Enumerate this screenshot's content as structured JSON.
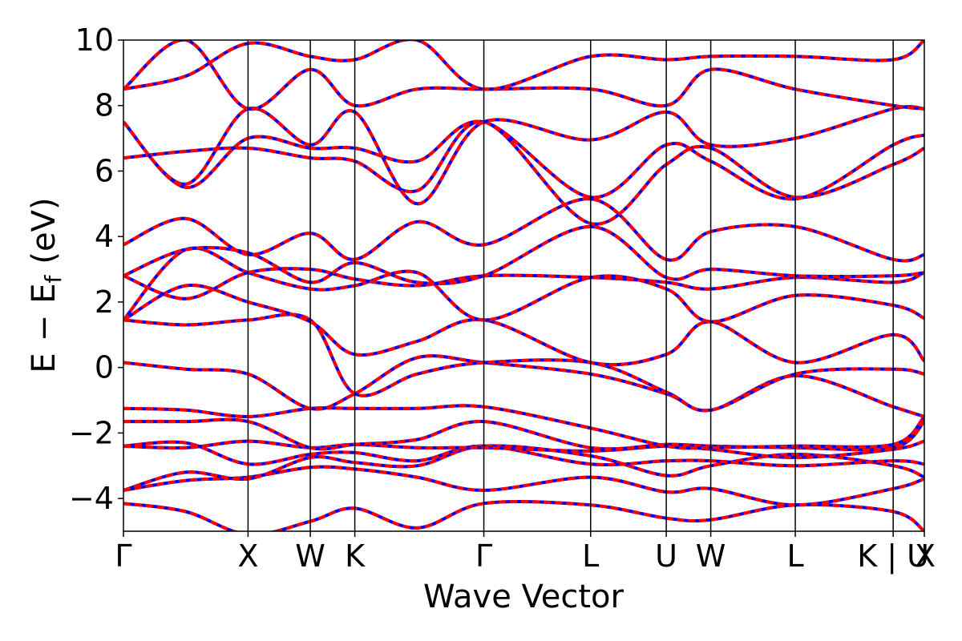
{
  "chart_data": {
    "type": "line",
    "title": "",
    "xlabel": "Wave Vector",
    "ylabel_parts": [
      "E",
      "−",
      "E",
      "f",
      "(eV)"
    ],
    "ylim": [
      -5,
      10
    ],
    "yticks": [
      -4,
      -2,
      0,
      2,
      4,
      6,
      8,
      10
    ],
    "ytick_labels": [
      "−4",
      "−2",
      "0",
      "2",
      "4",
      "6",
      "8",
      "10"
    ],
    "grid": false,
    "legend": "none",
    "colors": {
      "band_a": "#0000ff",
      "band_b": "#ff0000",
      "divider": "#000000"
    },
    "kpoint_positions": [
      0,
      1.4,
      2.1,
      2.6,
      4.05,
      5.25,
      6.1,
      6.6,
      7.55,
      8.65,
      9.0
    ],
    "kpoint_labels": [
      "Γ",
      "X",
      "W",
      "K",
      "Γ",
      "L",
      "U",
      "W",
      "L",
      "K | U",
      "X"
    ],
    "xlim": [
      0,
      9.0
    ],
    "series": [
      {
        "values": [
          [
            0,
            -4.15
          ],
          [
            0.7,
            -4.4
          ],
          [
            1.4,
            -5.1
          ],
          [
            2.1,
            -4.7
          ],
          [
            2.6,
            -4.3
          ],
          [
            3.3,
            -4.9
          ],
          [
            4.05,
            -4.15
          ],
          [
            5.25,
            -4.2
          ],
          [
            6.1,
            -4.6
          ],
          [
            6.6,
            -4.65
          ],
          [
            7.55,
            -4.2
          ],
          [
            8.65,
            -4.4
          ],
          [
            9.0,
            -5.0
          ]
        ]
      },
      {
        "values": [
          [
            0,
            -3.75
          ],
          [
            0.7,
            -3.45
          ],
          [
            1.4,
            -3.35
          ],
          [
            2.1,
            -3.05
          ],
          [
            2.6,
            -3.1
          ],
          [
            3.3,
            -3.35
          ],
          [
            4.05,
            -3.75
          ],
          [
            5.25,
            -3.35
          ],
          [
            6.1,
            -3.8
          ],
          [
            6.6,
            -3.7
          ],
          [
            7.55,
            -4.2
          ],
          [
            8.65,
            -3.7
          ],
          [
            9.0,
            -3.4
          ]
        ]
      },
      {
        "values": [
          [
            0,
            -3.75
          ],
          [
            0.7,
            -3.2
          ],
          [
            1.4,
            -3.4
          ],
          [
            2.1,
            -2.75
          ],
          [
            2.6,
            -2.9
          ],
          [
            3.3,
            -3.0
          ],
          [
            4.05,
            -2.4
          ],
          [
            5.25,
            -2.7
          ],
          [
            6.1,
            -3.3
          ],
          [
            6.6,
            -3.0
          ],
          [
            7.55,
            -2.65
          ],
          [
            8.65,
            -3.0
          ],
          [
            9.0,
            -3.35
          ]
        ]
      },
      {
        "values": [
          [
            0,
            -2.4
          ],
          [
            0.7,
            -2.3
          ],
          [
            1.4,
            -2.95
          ],
          [
            2.1,
            -2.65
          ],
          [
            2.6,
            -2.6
          ],
          [
            3.3,
            -2.85
          ],
          [
            4.05,
            -2.4
          ],
          [
            5.25,
            -2.95
          ],
          [
            6.1,
            -2.85
          ],
          [
            6.6,
            -2.85
          ],
          [
            7.55,
            -3.0
          ],
          [
            8.65,
            -2.85
          ],
          [
            9.0,
            -2.95
          ]
        ]
      },
      {
        "values": [
          [
            0,
            -2.4
          ],
          [
            0.7,
            -2.45
          ],
          [
            1.4,
            -2.25
          ],
          [
            2.1,
            -2.45
          ],
          [
            2.6,
            -2.35
          ],
          [
            3.3,
            -2.45
          ],
          [
            4.05,
            -2.45
          ],
          [
            5.25,
            -2.55
          ],
          [
            6.1,
            -2.4
          ],
          [
            6.6,
            -2.5
          ],
          [
            7.55,
            -2.75
          ],
          [
            8.65,
            -2.5
          ],
          [
            9.0,
            -2.25
          ]
        ]
      },
      {
        "values": [
          [
            0,
            -1.65
          ],
          [
            0.7,
            -1.65
          ],
          [
            1.4,
            -1.65
          ],
          [
            2.1,
            -2.45
          ],
          [
            2.6,
            -2.35
          ],
          [
            3.3,
            -2.2
          ],
          [
            4.05,
            -1.65
          ],
          [
            5.25,
            -2.45
          ],
          [
            6.1,
            -2.35
          ],
          [
            6.6,
            -2.4
          ],
          [
            7.55,
            -2.45
          ],
          [
            8.65,
            -2.45
          ],
          [
            9.0,
            -1.65
          ]
        ]
      },
      {
        "values": [
          [
            0,
            -1.25
          ],
          [
            0.7,
            -1.3
          ],
          [
            1.4,
            -1.5
          ],
          [
            2.1,
            -1.25
          ],
          [
            2.6,
            -1.25
          ],
          [
            3.3,
            -1.25
          ],
          [
            4.05,
            -1.2
          ],
          [
            5.25,
            -1.85
          ],
          [
            6.1,
            -2.4
          ],
          [
            6.6,
            -2.45
          ],
          [
            7.55,
            -2.4
          ],
          [
            8.65,
            -2.35
          ],
          [
            9.0,
            -1.5
          ]
        ]
      },
      {
        "values": [
          [
            0,
            0.15
          ],
          [
            0.7,
            -0.05
          ],
          [
            1.4,
            -0.2
          ],
          [
            2.1,
            -1.25
          ],
          [
            2.6,
            -0.8
          ],
          [
            3.3,
            0.3
          ],
          [
            4.05,
            0.15
          ],
          [
            5.25,
            -0.2
          ],
          [
            6.1,
            -0.8
          ],
          [
            6.6,
            -1.3
          ],
          [
            7.55,
            -0.25
          ],
          [
            8.65,
            -1.2
          ],
          [
            9.0,
            -1.5
          ]
        ]
      },
      {
        "values": [
          [
            0,
            1.45
          ],
          [
            0.7,
            1.3
          ],
          [
            1.4,
            1.45
          ],
          [
            2.1,
            1.45
          ],
          [
            2.6,
            -0.8
          ],
          [
            3.3,
            -0.2
          ],
          [
            4.05,
            0.15
          ],
          [
            5.25,
            0.15
          ],
          [
            6.1,
            -0.75
          ],
          [
            6.6,
            -1.3
          ],
          [
            7.55,
            -0.2
          ],
          [
            8.65,
            -0.05
          ],
          [
            9.0,
            -0.2
          ]
        ]
      },
      {
        "values": [
          [
            0,
            1.45
          ],
          [
            0.7,
            2.5
          ],
          [
            1.4,
            2.0
          ],
          [
            2.1,
            1.4
          ],
          [
            2.6,
            0.4
          ],
          [
            3.3,
            0.8
          ],
          [
            4.05,
            1.45
          ],
          [
            5.25,
            0.15
          ],
          [
            6.1,
            0.4
          ],
          [
            6.6,
            1.4
          ],
          [
            7.55,
            0.15
          ],
          [
            8.65,
            1.0
          ],
          [
            9.0,
            0.2
          ]
        ]
      },
      {
        "values": [
          [
            0,
            1.45
          ],
          [
            0.7,
            3.6
          ],
          [
            1.4,
            2.9
          ],
          [
            2.1,
            2.4
          ],
          [
            2.6,
            2.5
          ],
          [
            3.3,
            2.9
          ],
          [
            4.05,
            1.45
          ],
          [
            5.25,
            2.75
          ],
          [
            6.1,
            2.4
          ],
          [
            6.6,
            1.4
          ],
          [
            7.55,
            2.2
          ],
          [
            8.65,
            1.9
          ],
          [
            9.0,
            1.5
          ]
        ]
      },
      {
        "values": [
          [
            0,
            2.8
          ],
          [
            0.7,
            2.1
          ],
          [
            1.4,
            2.9
          ],
          [
            2.1,
            3.0
          ],
          [
            2.6,
            2.7
          ],
          [
            3.3,
            2.5
          ],
          [
            4.05,
            2.8
          ],
          [
            5.25,
            2.75
          ],
          [
            6.1,
            2.6
          ],
          [
            6.6,
            2.4
          ],
          [
            7.55,
            2.75
          ],
          [
            8.65,
            2.6
          ],
          [
            9.0,
            2.9
          ]
        ]
      },
      {
        "values": [
          [
            0,
            2.8
          ],
          [
            0.7,
            3.6
          ],
          [
            1.4,
            3.5
          ],
          [
            2.1,
            2.6
          ],
          [
            2.6,
            3.2
          ],
          [
            3.3,
            2.6
          ],
          [
            4.05,
            2.8
          ],
          [
            5.25,
            4.3
          ],
          [
            6.1,
            2.75
          ],
          [
            6.6,
            3.0
          ],
          [
            7.55,
            2.8
          ],
          [
            8.65,
            2.8
          ],
          [
            9.0,
            2.9
          ]
        ]
      },
      {
        "values": [
          [
            0,
            3.75
          ],
          [
            0.7,
            4.55
          ],
          [
            1.4,
            3.45
          ],
          [
            2.1,
            4.1
          ],
          [
            2.6,
            3.3
          ],
          [
            3.3,
            4.45
          ],
          [
            4.05,
            3.75
          ],
          [
            5.25,
            5.15
          ],
          [
            6.1,
            3.3
          ],
          [
            6.6,
            4.15
          ],
          [
            7.55,
            4.3
          ],
          [
            8.65,
            3.3
          ],
          [
            9.0,
            3.45
          ]
        ]
      },
      {
        "values": [
          [
            0,
            6.4
          ],
          [
            0.7,
            6.6
          ],
          [
            1.4,
            6.7
          ],
          [
            2.1,
            6.4
          ],
          [
            2.6,
            6.3
          ],
          [
            3.3,
            5.4
          ],
          [
            4.05,
            7.5
          ],
          [
            5.25,
            4.4
          ],
          [
            6.1,
            6.2
          ],
          [
            6.6,
            6.7
          ],
          [
            7.55,
            5.2
          ],
          [
            8.65,
            6.2
          ],
          [
            9.0,
            6.7
          ]
        ]
      },
      {
        "values": [
          [
            0,
            7.5
          ],
          [
            0.7,
            5.5
          ],
          [
            1.4,
            7.0
          ],
          [
            2.1,
            6.7
          ],
          [
            2.6,
            6.7
          ],
          [
            3.3,
            6.3
          ],
          [
            4.05,
            7.5
          ],
          [
            5.25,
            5.2
          ],
          [
            6.1,
            6.8
          ],
          [
            6.6,
            6.3
          ],
          [
            7.55,
            5.15
          ],
          [
            8.65,
            6.8
          ],
          [
            9.0,
            7.1
          ]
        ]
      },
      {
        "values": [
          [
            0,
            7.5
          ],
          [
            0.7,
            5.6
          ],
          [
            1.4,
            7.9
          ],
          [
            2.1,
            6.8
          ],
          [
            2.6,
            7.8
          ],
          [
            3.3,
            5.0
          ],
          [
            4.05,
            7.5
          ],
          [
            5.25,
            6.95
          ],
          [
            6.1,
            7.8
          ],
          [
            6.6,
            6.8
          ],
          [
            7.55,
            7.0
          ],
          [
            8.65,
            7.9
          ],
          [
            9.0,
            7.9
          ]
        ]
      },
      {
        "values": [
          [
            0,
            8.5
          ],
          [
            0.7,
            10.0
          ],
          [
            1.4,
            7.9
          ],
          [
            2.1,
            9.1
          ],
          [
            2.6,
            8.0
          ],
          [
            3.3,
            8.5
          ],
          [
            4.05,
            8.5
          ],
          [
            5.25,
            8.5
          ],
          [
            6.1,
            8.0
          ],
          [
            6.6,
            9.1
          ],
          [
            7.55,
            8.5
          ],
          [
            8.65,
            8.0
          ],
          [
            9.0,
            7.9
          ]
        ]
      },
      {
        "values": [
          [
            0,
            8.5
          ],
          [
            0.7,
            8.9
          ],
          [
            1.4,
            9.9
          ],
          [
            2.1,
            9.5
          ],
          [
            2.6,
            9.4
          ],
          [
            3.3,
            10.0
          ],
          [
            4.05,
            8.5
          ],
          [
            5.25,
            9.5
          ],
          [
            6.1,
            9.4
          ],
          [
            6.6,
            9.5
          ],
          [
            7.55,
            9.5
          ],
          [
            8.65,
            9.4
          ],
          [
            9.0,
            10.0
          ]
        ]
      }
    ]
  }
}
